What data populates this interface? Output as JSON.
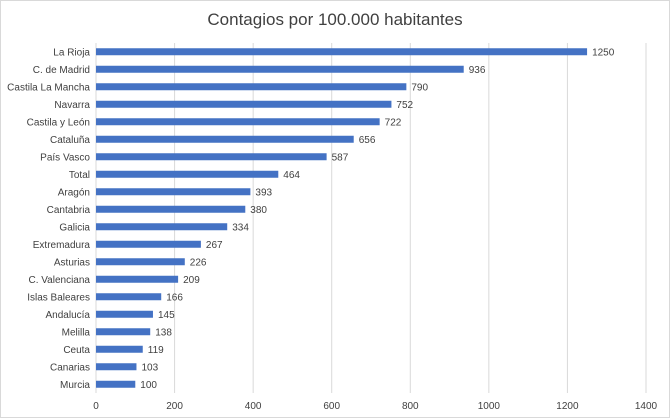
{
  "chart_data": {
    "type": "bar",
    "orientation": "horizontal",
    "title": "Contagios por 100.000 habitantes",
    "xlabel": "",
    "ylabel": "",
    "xlim": [
      0,
      1400
    ],
    "x_ticks": [
      0,
      200,
      400,
      600,
      800,
      1000,
      1200,
      1400
    ],
    "grid": true,
    "bar_color": "#4472c4",
    "categories": [
      "La Rioja",
      "C. de Madrid",
      "Castila La Mancha",
      "Navarra",
      "Castila y León",
      "Cataluña",
      "País Vasco",
      "Total",
      "Aragón",
      "Cantabria",
      "Galicia",
      "Extremadura",
      "Asturias",
      "C. Valenciana",
      "Islas Baleares",
      "Andalucía",
      "Melilla",
      "Ceuta",
      "Canarias",
      "Murcia"
    ],
    "values": [
      1250,
      936,
      790,
      752,
      722,
      656,
      587,
      464,
      393,
      380,
      334,
      267,
      226,
      209,
      166,
      145,
      138,
      119,
      103,
      100
    ]
  }
}
